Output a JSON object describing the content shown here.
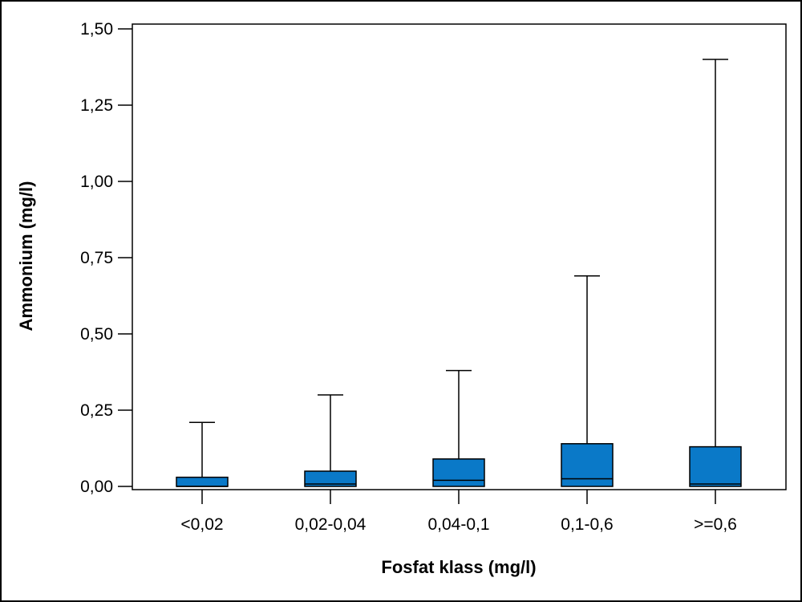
{
  "chart_data": {
    "type": "boxplot",
    "title": "",
    "xlabel": "Fosfat klass (mg/l)",
    "ylabel": "Ammonium (mg/l)",
    "ylim": [
      0,
      1.5
    ],
    "yticks": [
      0,
      0.25,
      0.5,
      0.75,
      1.0,
      1.25,
      1.5
    ],
    "ytick_labels": [
      "0,00",
      "0,25",
      "0,50",
      "0,75",
      "1,00",
      "1,25",
      "1,50"
    ],
    "grid": false,
    "box_color": "#0a79c8",
    "categories": [
      "<0,02",
      "0,02-0,04",
      "0,04-0,1",
      "0,1-0,6",
      ">=0,6"
    ],
    "boxes": [
      {
        "category": "<0,02",
        "whisker_low": 0,
        "q1": 0,
        "median": 0,
        "q3": 0.03,
        "whisker_high": 0.21
      },
      {
        "category": "0,02-0,04",
        "whisker_low": 0,
        "q1": 0,
        "median": 0.008,
        "q3": 0.05,
        "whisker_high": 0.3
      },
      {
        "category": "0,04-0,1",
        "whisker_low": 0,
        "q1": 0,
        "median": 0.02,
        "q3": 0.09,
        "whisker_high": 0.38
      },
      {
        "category": "0,1-0,6",
        "whisker_low": 0,
        "q1": 0,
        "median": 0.025,
        "q3": 0.14,
        "whisker_high": 0.69
      },
      {
        "category": ">=0,6",
        "whisker_low": 0,
        "q1": 0,
        "median": 0.008,
        "q3": 0.13,
        "whisker_high": 1.4
      }
    ]
  }
}
